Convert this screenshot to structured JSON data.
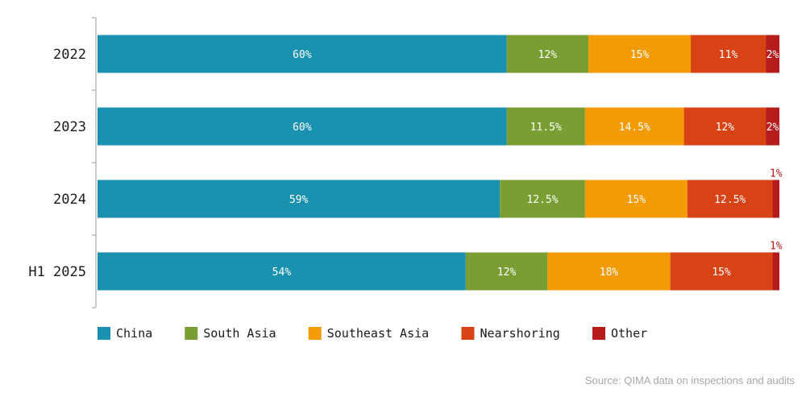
{
  "chart_data": {
    "type": "bar",
    "orientation": "horizontal",
    "stacked": true,
    "categories": [
      "2022",
      "2023",
      "2024",
      "H1 2025"
    ],
    "series": [
      {
        "name": "China",
        "color": "#1a91ae",
        "values": [
          60,
          60,
          59,
          54
        ],
        "labels": [
          "60%",
          "60%",
          "59%",
          "54%"
        ]
      },
      {
        "name": "South Asia",
        "color": "#7a9e33",
        "values": [
          12,
          11.5,
          12.5,
          12
        ],
        "labels": [
          "12%",
          "11.5%",
          "12.5%",
          "12%"
        ]
      },
      {
        "name": "Southeast Asia",
        "color": "#f29b05",
        "values": [
          15,
          14.5,
          15,
          18
        ],
        "labels": [
          "15%",
          "14.5%",
          "15%",
          "18%"
        ]
      },
      {
        "name": "Nearshoring",
        "color": "#d84315",
        "values": [
          11,
          12,
          12.5,
          15
        ],
        "labels": [
          "11%",
          "12%",
          "12.5%",
          "15%"
        ]
      },
      {
        "name": "Other",
        "color": "#b71c1c",
        "values": [
          2,
          2,
          1,
          1
        ],
        "labels": [
          "2%",
          "2%",
          "1%",
          "1%"
        ]
      }
    ],
    "source": "Source: QIMA data on inspections and audits",
    "legend_position": "bottom-left",
    "grid": false
  }
}
